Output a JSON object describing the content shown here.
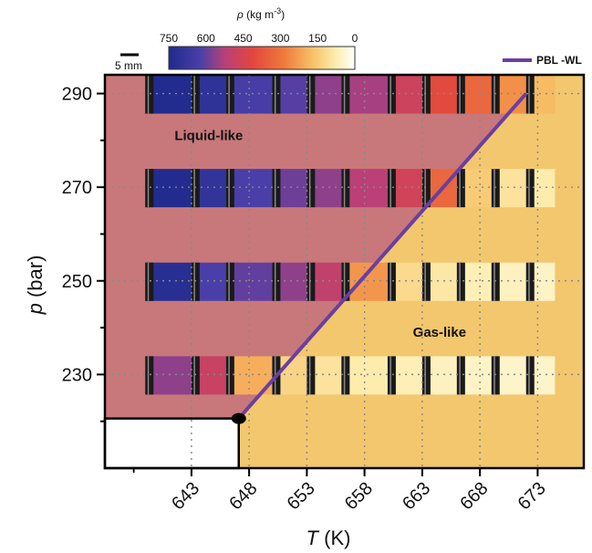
{
  "chart_data": {
    "type": "heatmap",
    "xlabel": "T (K)",
    "ylabel": "p (bar)",
    "x_ticks": [
      643,
      648,
      653,
      658,
      663,
      668,
      673
    ],
    "y_ticks": [
      230,
      250,
      270,
      290
    ],
    "xlim": [
      635.5,
      677
    ],
    "ylim": [
      210,
      294
    ],
    "colorbar": {
      "label": "ρ (kg m⁻³)",
      "ticks": [
        750,
        600,
        450,
        300,
        150,
        0
      ],
      "range": [
        750,
        0
      ]
    },
    "scale_bar": "5 mm",
    "regions": [
      {
        "name": "Liquid-like",
        "label_at": {
          "T": 644.5,
          "p": 281
        }
      },
      {
        "name": "Gas-like",
        "label_at": {
          "T": 664.5,
          "p": 239
        }
      }
    ],
    "series": [
      {
        "name": "PBL -WL",
        "type": "line",
        "color": "#6a3fa0",
        "points": [
          {
            "T": 647.1,
            "p": 220.6
          },
          {
            "T": 672,
            "p": 290
          }
        ]
      }
    ],
    "critical_point": {
      "T": 647.1,
      "p": 220.6
    },
    "density_profiles": [
      {
        "p": 290,
        "segments": [
          {
            "T": [
              639,
              643
            ],
            "rho": 740
          },
          {
            "T": [
              643,
              646
            ],
            "rho": 700
          },
          {
            "T": [
              646,
              650
            ],
            "rho": 630
          },
          {
            "T": [
              650,
              653
            ],
            "rho": 610
          },
          {
            "T": [
              653,
              656
            ],
            "rho": 560
          },
          {
            "T": [
              656,
              660
            ],
            "rho": 540
          },
          {
            "T": [
              660,
              663
            ],
            "rho": 470
          },
          {
            "T": [
              663,
              666
            ],
            "rho": 400
          },
          {
            "T": [
              666,
              669
            ],
            "rho": 330
          },
          {
            "T": [
              669,
              672
            ],
            "rho": 250
          },
          {
            "T": [
              672,
              674.5
            ],
            "rho": 180
          }
        ]
      },
      {
        "p": 270,
        "segments": [
          {
            "T": [
              639,
              643
            ],
            "rho": 740
          },
          {
            "T": [
              643,
              646
            ],
            "rho": 690
          },
          {
            "T": [
              646,
              650
            ],
            "rho": 620
          },
          {
            "T": [
              650,
              653
            ],
            "rho": 590
          },
          {
            "T": [
              653,
              656
            ],
            "rho": 560
          },
          {
            "T": [
              656,
              660
            ],
            "rho": 520
          },
          {
            "T": [
              660,
              663
            ],
            "rho": 460
          },
          {
            "T": [
              663,
              666
            ],
            "rho": 330
          },
          {
            "T": [
              666,
              669
            ],
            "rho": 150
          },
          {
            "T": [
              669,
              672
            ],
            "rho": 100
          },
          {
            "T": [
              672,
              674.5
            ],
            "rho": 80
          }
        ]
      },
      {
        "p": 250,
        "segments": [
          {
            "T": [
              639,
              643
            ],
            "rho": 720
          },
          {
            "T": [
              643,
              646
            ],
            "rho": 620
          },
          {
            "T": [
              646,
              650
            ],
            "rho": 600
          },
          {
            "T": [
              650,
              653
            ],
            "rho": 560
          },
          {
            "T": [
              653,
              656
            ],
            "rho": 500
          },
          {
            "T": [
              656,
              660
            ],
            "rho": 240
          },
          {
            "T": [
              660,
              663
            ],
            "rho": 120
          },
          {
            "T": [
              663,
              666
            ],
            "rho": 90
          },
          {
            "T": [
              666,
              669
            ],
            "rho": 70
          },
          {
            "T": [
              669,
              672
            ],
            "rho": 60
          },
          {
            "T": [
              672,
              674.5
            ],
            "rho": 55
          }
        ]
      },
      {
        "p": 230,
        "segments": [
          {
            "T": [
              639,
              643
            ],
            "rho": 560
          },
          {
            "T": [
              643,
              646
            ],
            "rho": 480
          },
          {
            "T": [
              646,
              650
            ],
            "rho": 200
          },
          {
            "T": [
              650,
              653
            ],
            "rho": 130
          },
          {
            "T": [
              653,
              656
            ],
            "rho": 100
          },
          {
            "T": [
              656,
              660
            ],
            "rho": 80
          },
          {
            "T": [
              660,
              663
            ],
            "rho": 70
          },
          {
            "T": [
              663,
              666
            ],
            "rho": 60
          },
          {
            "T": [
              666,
              669
            ],
            "rho": 55
          },
          {
            "T": [
              669,
              672
            ],
            "rho": 50
          },
          {
            "T": [
              672,
              674.5
            ],
            "rho": 50
          }
        ]
      }
    ],
    "colors": {
      "liquid_region": "#c8787a",
      "gas_region": "#f2c76e",
      "line": "#6a3fa0",
      "grid": "#888888"
    }
  }
}
